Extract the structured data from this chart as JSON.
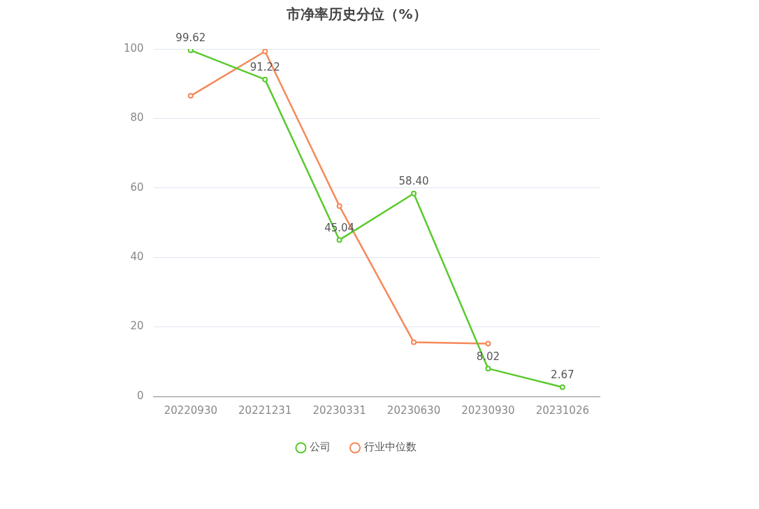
{
  "chart_data": {
    "type": "line",
    "title": "市净率历史分位（%）",
    "categories": [
      "20220930",
      "20221231",
      "20230331",
      "20230630",
      "20230930",
      "20231026"
    ],
    "series": [
      {
        "name": "公司",
        "color": "#5ac92d",
        "values": [
          99.62,
          91.22,
          45.04,
          58.4,
          8.02,
          2.67
        ],
        "value_labels": [
          "99.62",
          "91.22",
          "45.04",
          "58.40",
          "8.02",
          "2.67"
        ]
      },
      {
        "name": "行业中位数",
        "color": "#f5895a",
        "values": [
          86.5,
          99.3,
          54.8,
          15.6,
          15.2,
          null
        ]
      }
    ],
    "ylim": [
      0,
      100
    ],
    "yticks": [
      0,
      20,
      40,
      60,
      80,
      100
    ],
    "grid": "y",
    "legend": "bottom",
    "marker": "circle",
    "line_style": "solid"
  }
}
